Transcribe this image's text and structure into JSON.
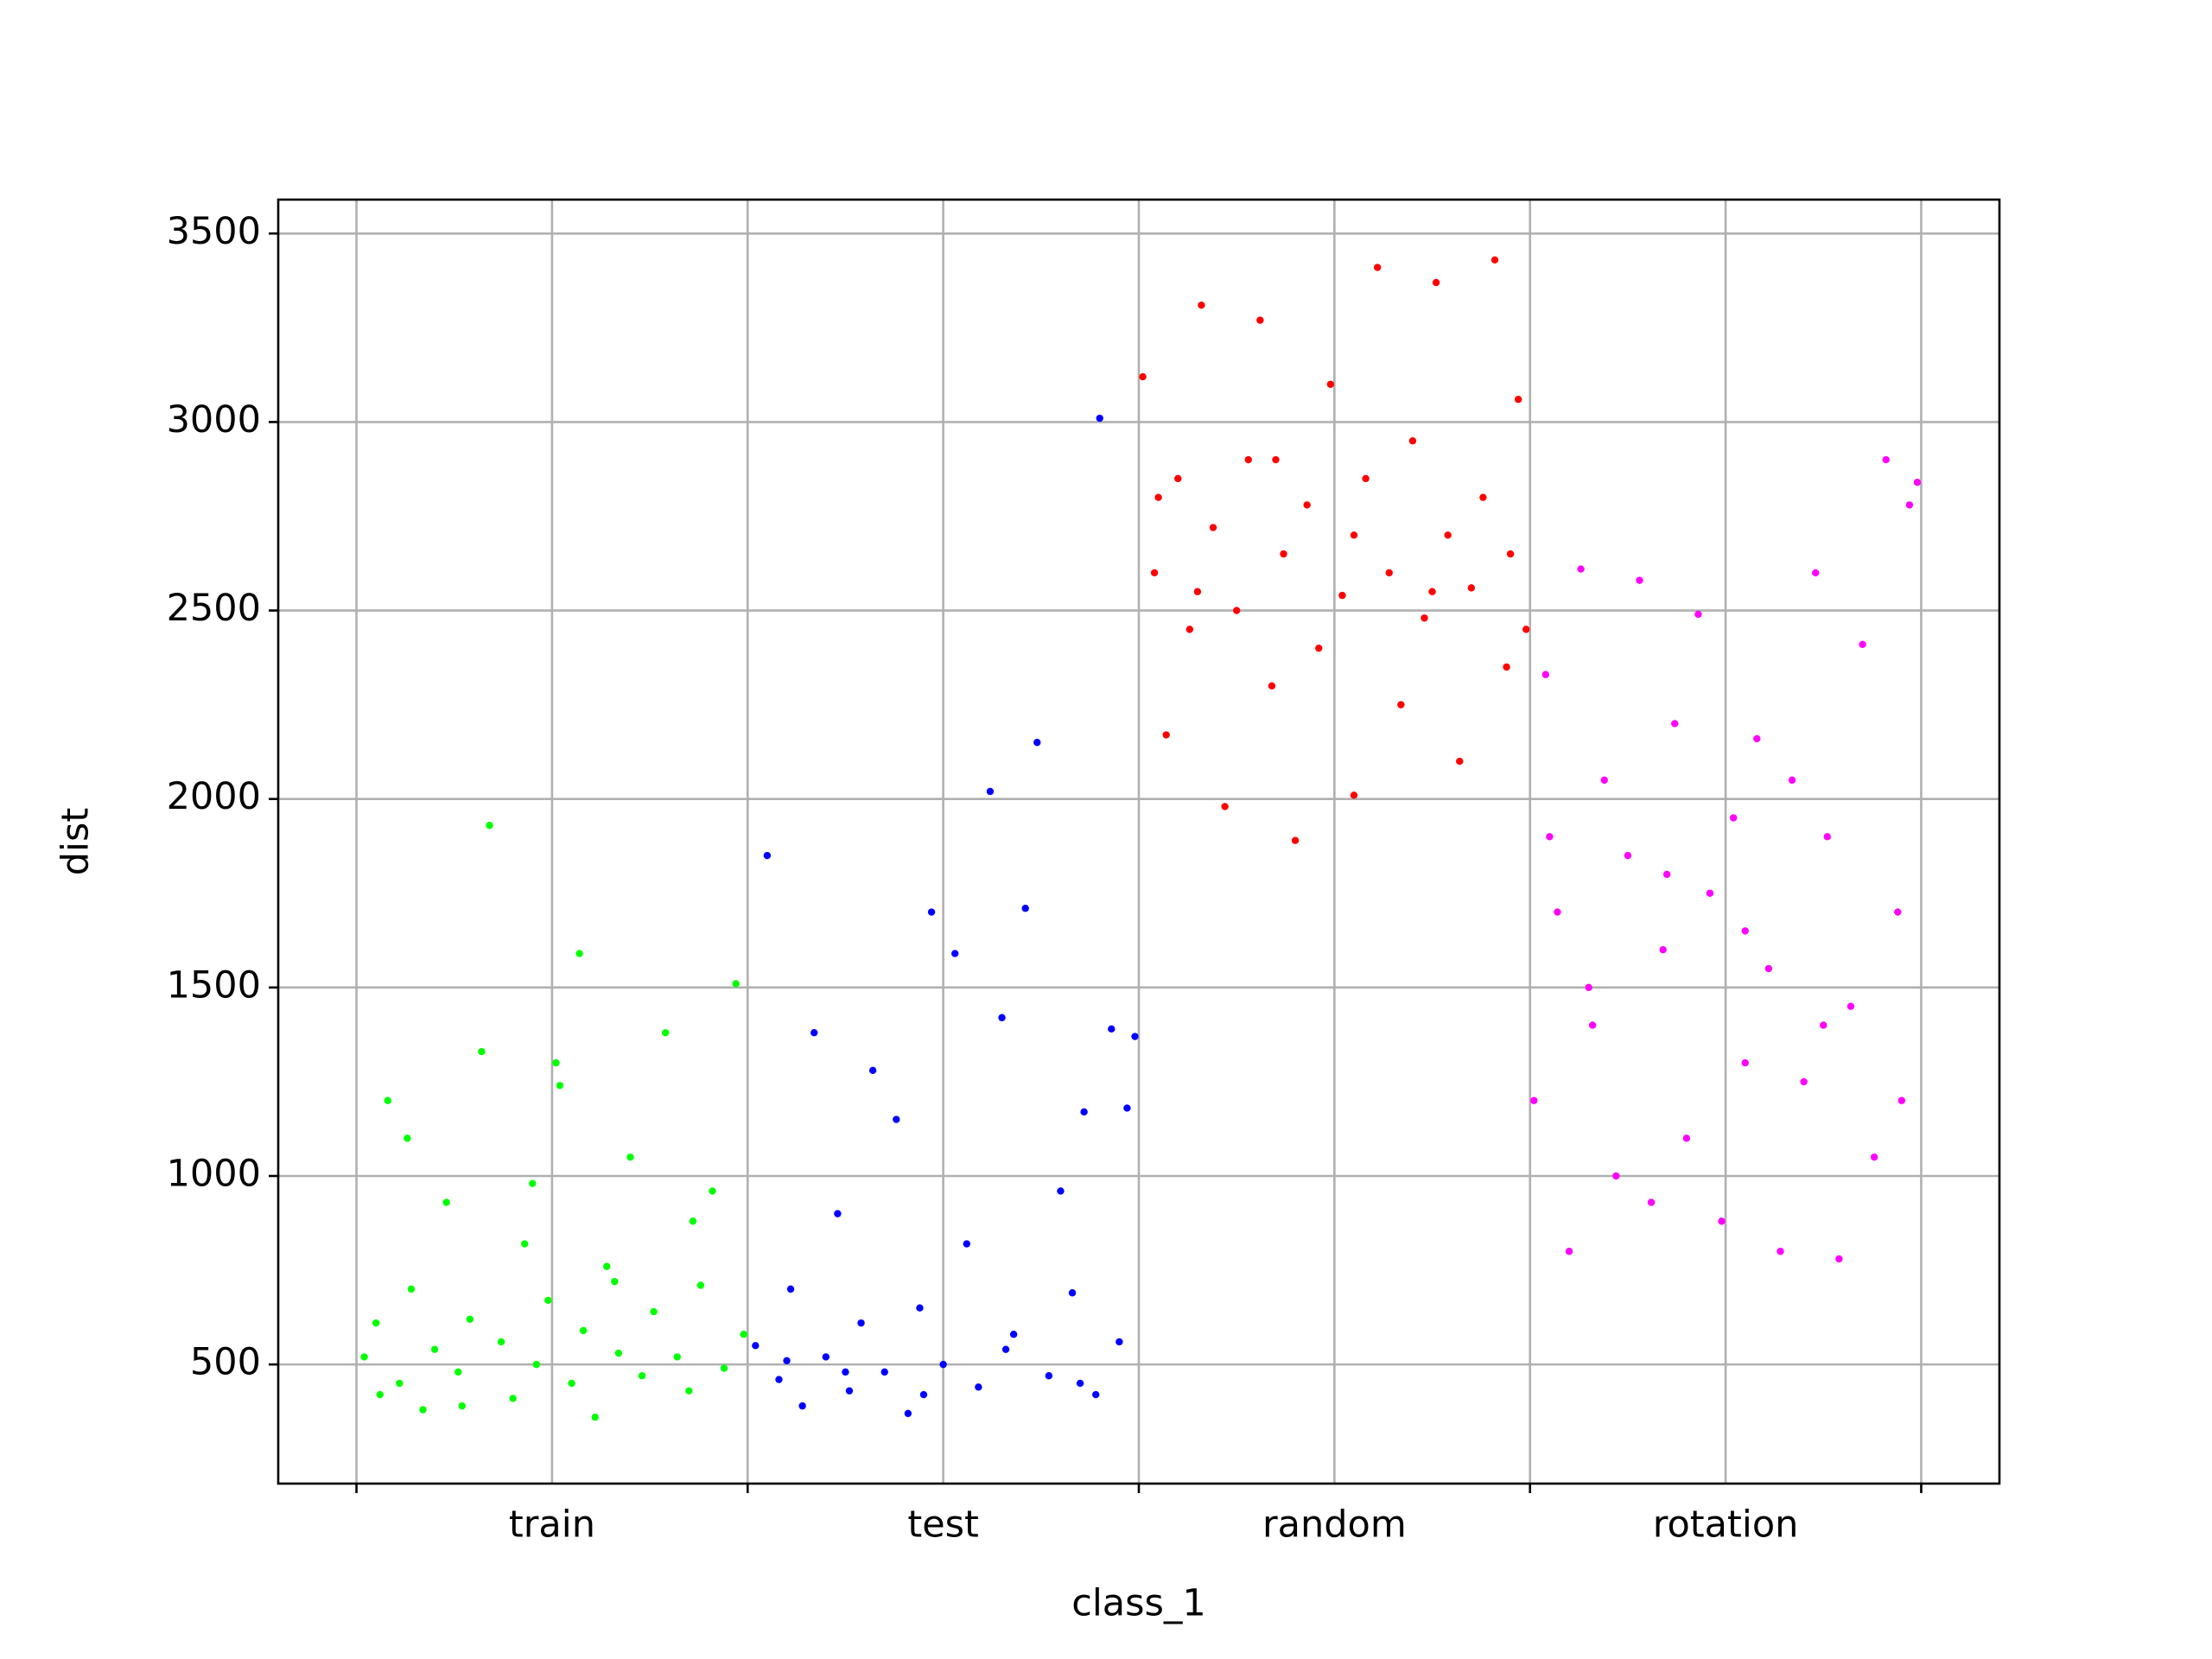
{
  "chart_data": {
    "type": "scatter",
    "xlabel": "class_1",
    "ylabel": "dist",
    "xlim": [
      -0.2,
      4.2
    ],
    "ylim": [
      184,
      3590
    ],
    "xticks": [
      {
        "value": 0.5,
        "label": "train"
      },
      {
        "value": 1.5,
        "label": "test"
      },
      {
        "value": 2.5,
        "label": "random"
      },
      {
        "value": 3.5,
        "label": "rotation"
      }
    ],
    "xticks_unlabeled": [
      0,
      1,
      2,
      3,
      4
    ],
    "yticks": [
      500,
      1000,
      1500,
      2000,
      2500,
      3000,
      3500
    ],
    "grid": true,
    "series": [
      {
        "color": "#00ff00",
        "x": [
          0.02,
          0.05,
          0.08,
          0.11,
          0.14,
          0.17,
          0.2,
          0.23,
          0.26,
          0.29,
          0.32,
          0.34,
          0.37,
          0.4,
          0.43,
          0.46,
          0.49,
          0.52,
          0.55,
          0.58,
          0.61,
          0.64,
          0.67,
          0.7,
          0.73,
          0.76,
          0.79,
          0.82,
          0.85,
          0.88,
          0.91,
          0.94,
          0.97,
          0.99,
          0.06,
          0.27,
          0.45,
          0.57,
          0.66,
          0.86,
          0.13,
          0.51
        ],
        "values": [
          520,
          610,
          1200,
          450,
          700,
          380,
          540,
          930,
          480,
          620,
          1330,
          1930,
          560,
          410,
          820,
          500,
          670,
          1240,
          450,
          590,
          360,
          760,
          530,
          1050,
          470,
          640,
          1380,
          520,
          430,
          710,
          960,
          490,
          1510,
          580,
          420,
          390,
          980,
          1590,
          720,
          880,
          1100,
          1300
        ]
      },
      {
        "color": "#0000ff",
        "x": [
          1.02,
          1.05,
          1.08,
          1.11,
          1.14,
          1.17,
          1.2,
          1.23,
          1.26,
          1.29,
          1.32,
          1.35,
          1.38,
          1.41,
          1.44,
          1.47,
          1.5,
          1.53,
          1.56,
          1.59,
          1.62,
          1.65,
          1.68,
          1.71,
          1.74,
          1.77,
          1.8,
          1.83,
          1.86,
          1.89,
          1.9,
          1.93,
          1.95,
          1.97,
          1.99,
          1.25,
          1.45,
          1.66,
          1.85,
          1.1
        ],
        "values": [
          550,
          1850,
          460,
          700,
          390,
          1380,
          520,
          900,
          430,
          610,
          1280,
          480,
          1150,
          370,
          650,
          1700,
          500,
          1590,
          820,
          440,
          2020,
          1420,
          580,
          1710,
          2150,
          470,
          960,
          690,
          1170,
          420,
          3010,
          1390,
          560,
          1180,
          1370,
          480,
          420,
          540,
          450,
          510
        ]
      },
      {
        "color": "#ff0000",
        "x": [
          2.01,
          2.04,
          2.07,
          2.1,
          2.13,
          2.16,
          2.19,
          2.22,
          2.25,
          2.28,
          2.31,
          2.34,
          2.37,
          2.4,
          2.43,
          2.46,
          2.49,
          2.52,
          2.55,
          2.58,
          2.61,
          2.64,
          2.67,
          2.7,
          2.73,
          2.76,
          2.79,
          2.82,
          2.85,
          2.88,
          2.91,
          2.94,
          2.97,
          2.99,
          2.05,
          2.35,
          2.55,
          2.75,
          2.95,
          2.15
        ],
        "values": [
          3120,
          2600,
          2170,
          2850,
          2450,
          3310,
          2720,
          1980,
          2500,
          2900,
          3270,
          2300,
          2650,
          1890,
          2780,
          2400,
          3100,
          2540,
          2010,
          2850,
          3410,
          2600,
          2250,
          2950,
          2480,
          3370,
          2700,
          2100,
          2560,
          2800,
          3430,
          2350,
          3060,
          2450,
          2800,
          2900,
          2700,
          2550,
          2650,
          2550
        ]
      },
      {
        "color": "#ff00ff",
        "x": [
          3.01,
          3.04,
          3.07,
          3.1,
          3.13,
          3.16,
          3.19,
          3.22,
          3.25,
          3.28,
          3.31,
          3.34,
          3.37,
          3.4,
          3.43,
          3.46,
          3.49,
          3.52,
          3.55,
          3.58,
          3.61,
          3.64,
          3.67,
          3.7,
          3.73,
          3.76,
          3.79,
          3.82,
          3.85,
          3.88,
          3.91,
          3.94,
          3.97,
          3.99,
          3.15,
          3.35,
          3.55,
          3.75,
          3.95,
          3.05
        ],
        "values": [
          1200,
          2330,
          1700,
          800,
          2610,
          1400,
          2050,
          1000,
          1850,
          2580,
          930,
          1600,
          2200,
          1100,
          2490,
          1750,
          880,
          1950,
          1300,
          2160,
          1550,
          800,
          2050,
          1250,
          2600,
          1900,
          780,
          1450,
          2410,
          1050,
          2900,
          1700,
          2780,
          2840,
          1500,
          1800,
          1650,
          1400,
          1200,
          1900
        ]
      }
    ]
  }
}
